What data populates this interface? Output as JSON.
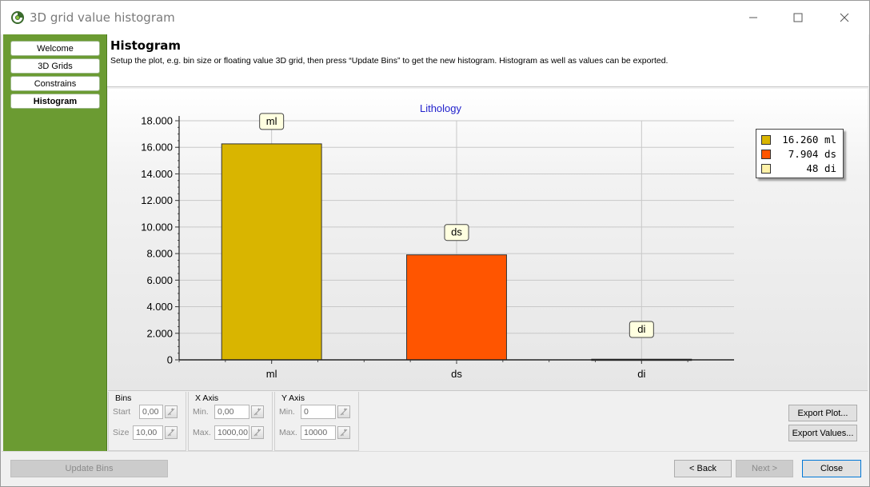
{
  "window": {
    "title": "3D grid value histogram",
    "icons": {
      "app": "app-logo-icon",
      "minimize": "minimize-icon",
      "maximize": "maximize-icon",
      "close": "close-icon"
    }
  },
  "sidebar": {
    "items": [
      {
        "label": "Welcome",
        "active": false
      },
      {
        "label": "3D Grids",
        "active": false
      },
      {
        "label": "Constrains",
        "active": false
      },
      {
        "label": "Histogram",
        "active": true
      }
    ]
  },
  "header": {
    "title": "Histogram",
    "description": "Setup the plot, e.g. bin size or floating value 3D grid, then press “Update Bins” to get the new histogram. Histogram as well as values can be exported."
  },
  "chart_data": {
    "type": "bar",
    "title": "Lithology",
    "categories": [
      "ml",
      "ds",
      "di"
    ],
    "values": [
      16260,
      7904,
      48
    ],
    "colors": [
      "#d9b500",
      "#ff5500",
      "#fff2a8"
    ],
    "bar_labels": [
      "ml",
      "ds",
      "di"
    ],
    "y_ticks": [
      "0",
      "2.000",
      "4.000",
      "6.000",
      "8.000",
      "10.000",
      "12.000",
      "14.000",
      "16.000",
      "18.000"
    ],
    "ylim": [
      0,
      18000
    ],
    "grid": true,
    "legend": {
      "position": "top-right",
      "entries": [
        {
          "value": "16.260",
          "name": "ml",
          "color": "#d9b500"
        },
        {
          "value": "7.904",
          "name": "ds",
          "color": "#ff5500"
        },
        {
          "value": "48",
          "name": "di",
          "color": "#fff2a8"
        }
      ]
    }
  },
  "controls": {
    "bins": {
      "title": "Bins",
      "start_label": "Start",
      "start_value": "0,00",
      "size_label": "Size",
      "size_value": "10,00"
    },
    "x_axis": {
      "title": "X Axis",
      "min_label": "Min.",
      "min_value": "0,00",
      "max_label": "Max.",
      "max_value": "1000,00"
    },
    "y_axis": {
      "title": "Y Axis",
      "min_label": "Min.",
      "min_value": "0",
      "max_label": "Max.",
      "max_value": "10000"
    },
    "export_plot": "Export Plot...",
    "export_values": "Export Values..."
  },
  "footer": {
    "update_bins": "Update Bins",
    "back": "< Back",
    "next": "Next >",
    "close": "Close"
  }
}
